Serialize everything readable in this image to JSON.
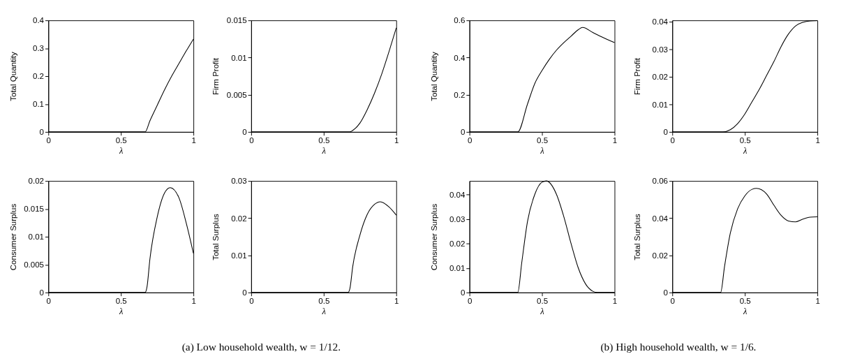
{
  "chart_data": [
    {
      "type": "line",
      "xlabel": "λ",
      "ylabel": "Total Quantity",
      "xlim": [
        0,
        1
      ],
      "xticks": [
        0,
        0.5,
        1
      ],
      "ylim": [
        0,
        0.4
      ],
      "yticks": [
        0,
        0.1,
        0.2,
        0.3,
        0.4
      ],
      "series": [
        {
          "color": "#000000",
          "x": [
            0,
            0.667,
            0.7,
            0.75,
            0.8,
            0.85,
            0.9,
            0.95,
            1
          ],
          "values": [
            0,
            0,
            0.04,
            0.095,
            0.15,
            0.2,
            0.245,
            0.29,
            0.333
          ]
        }
      ]
    },
    {
      "type": "line",
      "xlabel": "λ",
      "ylabel": "Firm Profit",
      "xlim": [
        0,
        1
      ],
      "xticks": [
        0,
        0.5,
        1
      ],
      "ylim": [
        0,
        0.015
      ],
      "yticks": [
        0,
        0.005,
        0.01,
        0.015
      ],
      "series": [
        {
          "color": "#000000",
          "x": [
            0,
            0.68,
            0.7,
            0.75,
            0.8,
            0.85,
            0.9,
            0.95,
            1
          ],
          "values": [
            0,
            0,
            0.0002,
            0.0012,
            0.003,
            0.0052,
            0.0078,
            0.0108,
            0.014
          ]
        }
      ]
    },
    {
      "type": "line",
      "xlabel": "λ",
      "ylabel": "Total Quantity",
      "xlim": [
        0,
        1
      ],
      "xticks": [
        0,
        0.5,
        1
      ],
      "ylim": [
        0,
        0.6
      ],
      "yticks": [
        0,
        0.2,
        0.4,
        0.6
      ],
      "series": [
        {
          "color": "#000000",
          "x": [
            0,
            0.333,
            0.4,
            0.45,
            0.5,
            0.55,
            0.6,
            0.65,
            0.7,
            0.75,
            0.78,
            0.85,
            0.9,
            1
          ],
          "values": [
            0,
            0,
            0.15,
            0.26,
            0.33,
            0.39,
            0.44,
            0.48,
            0.515,
            0.55,
            0.562,
            0.535,
            0.515,
            0.48
          ]
        }
      ]
    },
    {
      "type": "line",
      "xlabel": "λ",
      "ylabel": "Firm Profit",
      "xlim": [
        0,
        1
      ],
      "xticks": [
        0,
        0.5,
        1
      ],
      "ylim": [
        0,
        0.0405
      ],
      "yticks": [
        0,
        0.01,
        0.02,
        0.03,
        0.04
      ],
      "series": [
        {
          "color": "#000000",
          "x": [
            0,
            0.35,
            0.4,
            0.45,
            0.5,
            0.55,
            0.6,
            0.65,
            0.7,
            0.75,
            0.8,
            0.85,
            0.9,
            0.95,
            1
          ],
          "values": [
            0,
            0,
            0.0008,
            0.003,
            0.0065,
            0.011,
            0.0155,
            0.0205,
            0.0255,
            0.031,
            0.0355,
            0.0385,
            0.0398,
            0.0403,
            0.0404
          ]
        }
      ]
    },
    {
      "type": "line",
      "xlabel": "λ",
      "ylabel": "Consumer Surplus",
      "xlim": [
        0,
        1
      ],
      "xticks": [
        0,
        0.5,
        1
      ],
      "ylim": [
        0,
        0.02
      ],
      "yticks": [
        0,
        0.005,
        0.01,
        0.015,
        0.02
      ],
      "annotations": [
        "(a) Low household wealth, w = 1/12."
      ],
      "series": [
        {
          "color": "#000000",
          "x": [
            0,
            0.667,
            0.68,
            0.7,
            0.75,
            0.8,
            0.84,
            0.9,
            0.95,
            1
          ],
          "values": [
            0,
            0,
            0.001,
            0.006,
            0.0135,
            0.0178,
            0.0188,
            0.017,
            0.0125,
            0.007
          ]
        }
      ]
    },
    {
      "type": "line",
      "xlabel": "λ",
      "ylabel": "Total Surplus",
      "xlim": [
        0,
        1
      ],
      "xticks": [
        0,
        0.5,
        1
      ],
      "ylim": [
        0,
        0.03
      ],
      "yticks": [
        0,
        0.01,
        0.02,
        0.03
      ],
      "series": [
        {
          "color": "#000000",
          "x": [
            0,
            0.667,
            0.68,
            0.7,
            0.75,
            0.8,
            0.85,
            0.89,
            0.95,
            1
          ],
          "values": [
            0,
            0,
            0.001,
            0.007,
            0.0155,
            0.021,
            0.0237,
            0.0244,
            0.023,
            0.0208
          ]
        }
      ]
    },
    {
      "type": "line",
      "xlabel": "λ",
      "ylabel": "Consumer Surplus",
      "xlim": [
        0,
        1
      ],
      "xticks": [
        0,
        0.5,
        1
      ],
      "ylim": [
        0,
        0.0455
      ],
      "yticks": [
        0,
        0.01,
        0.02,
        0.03,
        0.04
      ],
      "annotations": [
        "(b) High household wealth, w = 1/6."
      ],
      "series": [
        {
          "color": "#000000",
          "x": [
            0,
            0.333,
            0.36,
            0.4,
            0.45,
            0.5,
            0.53,
            0.6,
            0.65,
            0.7,
            0.75,
            0.8,
            0.85,
            0.88,
            1
          ],
          "values": [
            0,
            0,
            0.012,
            0.029,
            0.04,
            0.045,
            0.0455,
            0.04,
            0.031,
            0.02,
            0.01,
            0.0035,
            0.0005,
            0,
            0
          ]
        }
      ]
    },
    {
      "type": "line",
      "xlabel": "λ",
      "ylabel": "Total Surplus",
      "xlim": [
        0,
        1
      ],
      "xticks": [
        0,
        0.5,
        1
      ],
      "ylim": [
        0,
        0.06
      ],
      "yticks": [
        0,
        0.02,
        0.04,
        0.06
      ],
      "series": [
        {
          "color": "#000000",
          "x": [
            0,
            0.333,
            0.36,
            0.4,
            0.45,
            0.5,
            0.55,
            0.58,
            0.65,
            0.7,
            0.75,
            0.8,
            0.85,
            0.9,
            0.95,
            1
          ],
          "values": [
            0,
            0,
            0.014,
            0.032,
            0.045,
            0.052,
            0.0555,
            0.056,
            0.053,
            0.047,
            0.0415,
            0.0385,
            0.038,
            0.0395,
            0.0405,
            0.0407
          ]
        }
      ]
    }
  ]
}
